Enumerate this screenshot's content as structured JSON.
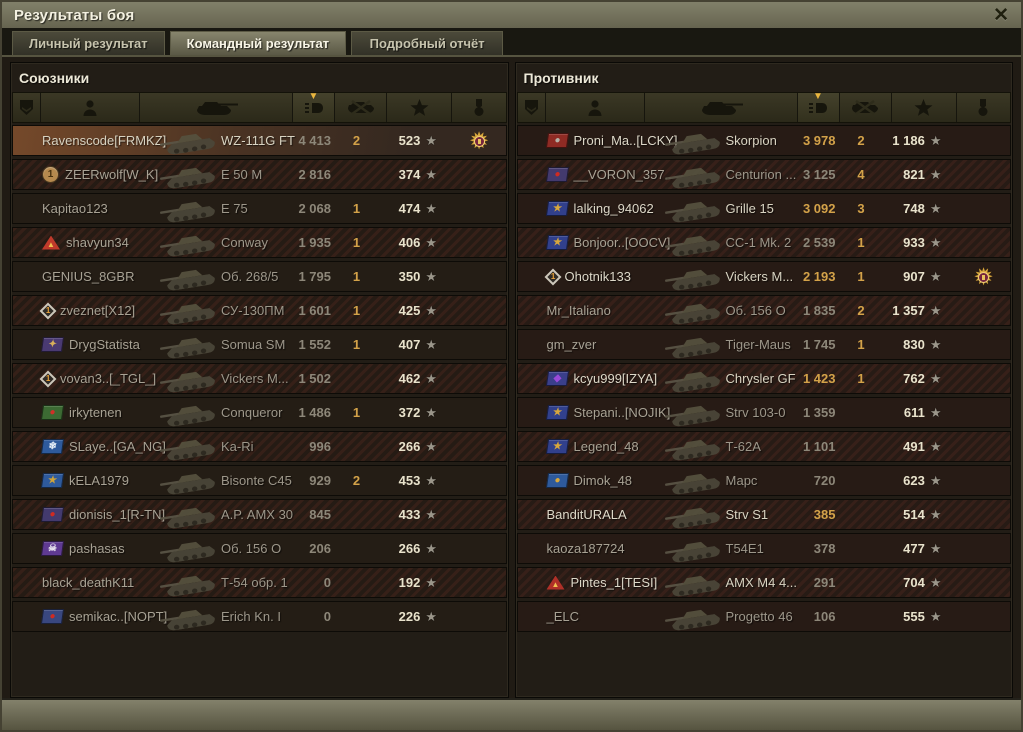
{
  "window": {
    "title": "Результаты боя"
  },
  "glyphs": {
    "close": "✕",
    "sort_caret": "▼",
    "xp_star": "★",
    "medal_rays": "✹"
  },
  "tabs": [
    {
      "label": "Личный результат",
      "active": false
    },
    {
      "label": "Командный результат",
      "active": true
    },
    {
      "label": "Подробный отчёт",
      "active": false
    }
  ],
  "columns": [
    "rank",
    "player",
    "vehicle",
    "damage",
    "frags",
    "experience",
    "medals"
  ],
  "sorted_column": "damage",
  "colors": {
    "gold_number": "#d3a249",
    "gray_number": "#8d8779",
    "xp_number": "#e9e3cc",
    "highlight_row": "#75492a",
    "titlebar": "#6f6d58"
  },
  "allies": {
    "title": "Союзники",
    "rows": [
      {
        "player": "Ravenscode[FRMKZ]",
        "vehicle": "WZ-111G FT",
        "damage": "4 413",
        "kills": "2",
        "xp": "523",
        "highlight": true,
        "bright": true,
        "dmg_gold": false,
        "medal": true,
        "emblem": null
      },
      {
        "player": "ZEERwolf[W_K]",
        "vehicle": "E 50 M",
        "damage": "2 816",
        "kills": "",
        "xp": "374",
        "highlight": false,
        "bright": false,
        "dmg_gold": false,
        "medal": false,
        "emblem": {
          "kind": "circle",
          "bg": "#b5894e",
          "fg": "#46310f",
          "glyph": "1"
        }
      },
      {
        "player": "Kapitao123",
        "vehicle": "E 75",
        "damage": "2 068",
        "kills": "1",
        "xp": "474",
        "highlight": false,
        "bright": false,
        "dmg_gold": false,
        "medal": false,
        "emblem": null
      },
      {
        "player": "shavyun34",
        "vehicle": "Conway",
        "damage": "1 935",
        "kills": "1",
        "xp": "406",
        "highlight": false,
        "bright": false,
        "dmg_gold": false,
        "medal": false,
        "emblem": {
          "kind": "triangle",
          "bg": "#bf3a2b",
          "fg": "#f0c050",
          "glyph": "▲"
        }
      },
      {
        "player": "GENIUS_8GBR",
        "vehicle": "Об. 268/5",
        "damage": "1 795",
        "kills": "1",
        "xp": "350",
        "highlight": false,
        "bright": false,
        "dmg_gold": false,
        "medal": false,
        "emblem": null
      },
      {
        "player": "zveznet[X12]",
        "vehicle": "СУ-130ПМ",
        "damage": "1 601",
        "kills": "1",
        "xp": "425",
        "highlight": false,
        "bright": false,
        "dmg_gold": false,
        "medal": false,
        "emblem": {
          "kind": "diamond",
          "bg": "#2f2b26",
          "fg": "#e8a23c",
          "glyph": "1"
        }
      },
      {
        "player": "DrygStatista",
        "vehicle": "Somua SM",
        "damage": "1 552",
        "kills": "1",
        "xp": "407",
        "highlight": false,
        "bright": false,
        "dmg_gold": false,
        "medal": false,
        "emblem": {
          "kind": "flag",
          "bg": "#4a3a72",
          "fg": "#d8b05a",
          "glyph": "✦"
        }
      },
      {
        "player": "vovan3..[_TGL_]",
        "vehicle": "Vickers M...",
        "damage": "1 502",
        "kills": "",
        "xp": "462",
        "highlight": false,
        "bright": false,
        "dmg_gold": false,
        "medal": false,
        "emblem": {
          "kind": "diamond",
          "bg": "#2f2b26",
          "fg": "#e8a23c",
          "glyph": "1"
        }
      },
      {
        "player": "irkytenen",
        "vehicle": "Conqueror",
        "damage": "1 486",
        "kills": "1",
        "xp": "372",
        "highlight": false,
        "bright": false,
        "dmg_gold": false,
        "medal": false,
        "emblem": {
          "kind": "flag",
          "bg": "#3c6a33",
          "fg": "#d03028",
          "glyph": "●"
        }
      },
      {
        "player": "SLaye..[GA_NG]",
        "vehicle": "Ka-Ri",
        "damage": "996",
        "kills": "",
        "xp": "266",
        "highlight": false,
        "bright": false,
        "dmg_gold": false,
        "medal": false,
        "emblem": {
          "kind": "flag",
          "bg": "#2e5a9c",
          "fg": "#e8f0f8",
          "glyph": "❄"
        }
      },
      {
        "player": "kELA1979",
        "vehicle": "Bisonte C45",
        "damage": "929",
        "kills": "2",
        "xp": "453",
        "highlight": false,
        "bright": false,
        "dmg_gold": false,
        "medal": false,
        "emblem": {
          "kind": "flag",
          "bg": "#2e5a9c",
          "fg": "#cfa43a",
          "glyph": "★"
        }
      },
      {
        "player": "dionisis_1[R-TN]",
        "vehicle": "A.P. AMX 30",
        "damage": "845",
        "kills": "",
        "xp": "433",
        "highlight": false,
        "bright": false,
        "dmg_gold": false,
        "medal": false,
        "emblem": {
          "kind": "flag",
          "bg": "#433a6e",
          "fg": "#cf2b22",
          "glyph": "●"
        }
      },
      {
        "player": "pashasas",
        "vehicle": "Об. 156 О",
        "damage": "206",
        "kills": "",
        "xp": "266",
        "highlight": false,
        "bright": false,
        "dmg_gold": false,
        "medal": false,
        "emblem": {
          "kind": "flag",
          "bg": "#5f3a92",
          "fg": "#e8e4ee",
          "glyph": "☠"
        }
      },
      {
        "player": "black_deathK11",
        "vehicle": "Т-54 обр. 1",
        "damage": "0",
        "kills": "",
        "xp": "192",
        "highlight": false,
        "bright": false,
        "dmg_gold": false,
        "medal": false,
        "emblem": null
      },
      {
        "player": "semikac..[NOPT]",
        "vehicle": "Erich Kn. I",
        "damage": "0",
        "kills": "",
        "xp": "226",
        "highlight": false,
        "bright": false,
        "dmg_gold": false,
        "medal": false,
        "emblem": {
          "kind": "flag",
          "bg": "#39477f",
          "fg": "#cf2b22",
          "glyph": "●"
        }
      }
    ]
  },
  "enemies": {
    "title": "Противник",
    "rows": [
      {
        "player": "Proni_Ma..[LCKY]",
        "vehicle": "Skorpion",
        "damage": "3 978",
        "kills": "2",
        "xp": "1 186",
        "highlight": false,
        "bright": true,
        "dmg_gold": true,
        "medal": false,
        "emblem": {
          "kind": "flag",
          "bg": "#8f2b24",
          "fg": "#b5b1a6",
          "glyph": "●"
        }
      },
      {
        "player": "__VORON_357..",
        "vehicle": "Centurion ...",
        "damage": "3 125",
        "kills": "4",
        "xp": "821",
        "highlight": false,
        "bright": false,
        "dmg_gold": false,
        "medal": false,
        "emblem": {
          "kind": "flag",
          "bg": "#433a6e",
          "fg": "#cf2b22",
          "glyph": "●"
        }
      },
      {
        "player": "lalking_94062",
        "vehicle": "Grille 15",
        "damage": "3 092",
        "kills": "3",
        "xp": "748",
        "highlight": false,
        "bright": true,
        "dmg_gold": true,
        "medal": false,
        "emblem": {
          "kind": "flag",
          "bg": "#31408c",
          "fg": "#d9a83c",
          "glyph": "★"
        }
      },
      {
        "player": "Bonjoor..[OOCV]",
        "vehicle": "СС-1 Mk. 2",
        "damage": "2 539",
        "kills": "1",
        "xp": "933",
        "highlight": false,
        "bright": false,
        "dmg_gold": false,
        "medal": false,
        "emblem": {
          "kind": "flag",
          "bg": "#31408c",
          "fg": "#d9a83c",
          "glyph": "★"
        }
      },
      {
        "player": "Ohotnik133",
        "vehicle": "Vickers M...",
        "damage": "2 193",
        "kills": "1",
        "xp": "907",
        "highlight": false,
        "bright": true,
        "dmg_gold": true,
        "medal": true,
        "emblem": {
          "kind": "diamond",
          "bg": "#2f2b26",
          "fg": "#e8a23c",
          "glyph": "1"
        }
      },
      {
        "player": "Mr_Italiano",
        "vehicle": "Об. 156 О",
        "damage": "1 835",
        "kills": "2",
        "xp": "1 357",
        "highlight": false,
        "bright": false,
        "dmg_gold": false,
        "medal": false,
        "emblem": null
      },
      {
        "player": "gm_zver",
        "vehicle": "Tiger-Maus",
        "damage": "1 745",
        "kills": "1",
        "xp": "830",
        "highlight": false,
        "bright": false,
        "dmg_gold": false,
        "medal": false,
        "emblem": null
      },
      {
        "player": "kcyu999[IZYA]",
        "vehicle": "Chrysler GF",
        "damage": "1 423",
        "kills": "1",
        "xp": "762",
        "highlight": false,
        "bright": true,
        "dmg_gold": true,
        "medal": false,
        "emblem": {
          "kind": "flag",
          "bg": "#3a3f8a",
          "fg": "#9a4ad8",
          "glyph": "◆"
        }
      },
      {
        "player": "Stepani..[NOJIK]",
        "vehicle": "Strv 103-0",
        "damage": "1 359",
        "kills": "",
        "xp": "611",
        "highlight": false,
        "bright": false,
        "dmg_gold": false,
        "medal": false,
        "emblem": {
          "kind": "flag",
          "bg": "#31408c",
          "fg": "#d9a83c",
          "glyph": "★"
        }
      },
      {
        "player": "Legend_48",
        "vehicle": "Т-62А",
        "damage": "1 101",
        "kills": "",
        "xp": "491",
        "highlight": false,
        "bright": false,
        "dmg_gold": false,
        "medal": false,
        "emblem": {
          "kind": "flag",
          "bg": "#31408c",
          "fg": "#d9a83c",
          "glyph": "★"
        }
      },
      {
        "player": "Dimok_48",
        "vehicle": "Марс",
        "damage": "720",
        "kills": "",
        "xp": "623",
        "highlight": false,
        "bright": false,
        "dmg_gold": false,
        "medal": false,
        "emblem": {
          "kind": "flag",
          "bg": "#2e5a9c",
          "fg": "#d9a83c",
          "glyph": "●"
        }
      },
      {
        "player": "BanditURALA",
        "vehicle": "Strv S1",
        "damage": "385",
        "kills": "",
        "xp": "514",
        "highlight": false,
        "bright": true,
        "dmg_gold": true,
        "medal": false,
        "emblem": null
      },
      {
        "player": "kaoza187724",
        "vehicle": "T54E1",
        "damage": "378",
        "kills": "",
        "xp": "477",
        "highlight": false,
        "bright": false,
        "dmg_gold": false,
        "medal": false,
        "emblem": null
      },
      {
        "player": "Pintes_1[TESI]",
        "vehicle": "AMX M4 4...",
        "damage": "291",
        "kills": "",
        "xp": "704",
        "highlight": false,
        "bright": true,
        "dmg_gold": false,
        "medal": false,
        "emblem": {
          "kind": "triangle",
          "bg": "#b03028",
          "fg": "#f0c050",
          "glyph": "▲"
        }
      },
      {
        "player": "_ELC",
        "vehicle": "Progetto 46",
        "damage": "106",
        "kills": "",
        "xp": "555",
        "highlight": false,
        "bright": false,
        "dmg_gold": false,
        "medal": false,
        "emblem": null
      }
    ]
  }
}
